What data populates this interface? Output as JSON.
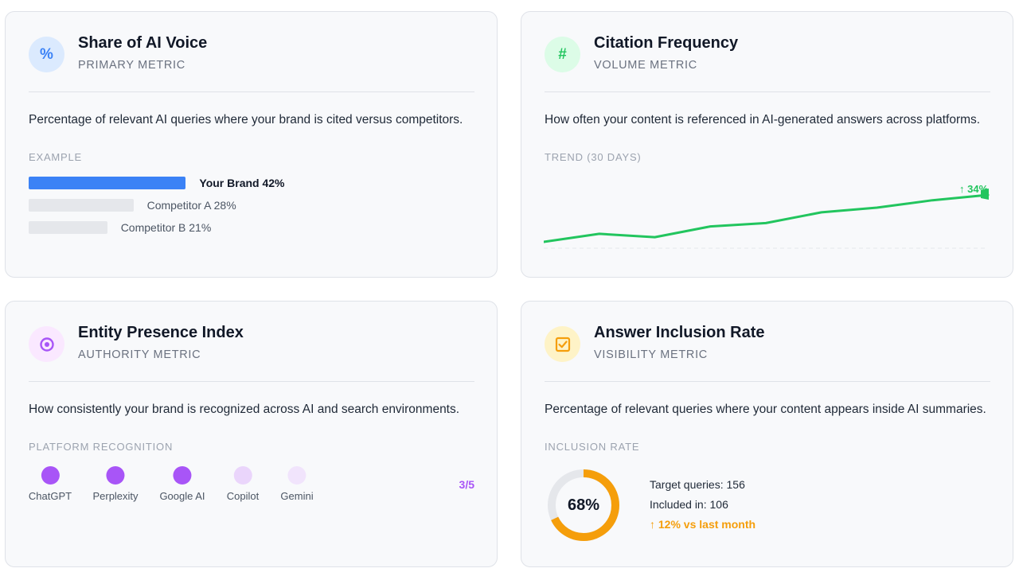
{
  "cards": [
    {
      "title": "Share of AI Voice",
      "subtitle": "PRIMARY METRIC",
      "icon": "percent-icon",
      "icon_glyph": "%",
      "description": "Percentage of relevant AI queries where your brand is cited versus competitors.",
      "section_label": "EXAMPLE",
      "bars": [
        {
          "label": "Your Brand 42%",
          "value": 42,
          "color": "#3b82f6",
          "highlight": true
        },
        {
          "label": "Competitor A 28%",
          "value": 28,
          "color": "#e5e7eb",
          "highlight": false
        },
        {
          "label": "Competitor B 21%",
          "value": 21,
          "color": "#e5e7eb",
          "highlight": false
        }
      ]
    },
    {
      "title": "Citation Frequency",
      "subtitle": "VOLUME METRIC",
      "icon": "hash-icon",
      "icon_glyph": "#",
      "description": "How often your content is referenced in AI-generated answers across platforms.",
      "section_label": "TREND (30 DAYS)",
      "trend_badge": "↑ 34%"
    },
    {
      "title": "Entity Presence Index",
      "subtitle": "AUTHORITY METRIC",
      "icon": "target-icon",
      "description": "How consistently your brand is recognized across AI and search environments.",
      "section_label": "PLATFORM RECOGNITION",
      "platforms": [
        {
          "name": "ChatGPT",
          "recognized": true
        },
        {
          "name": "Perplexity",
          "recognized": true
        },
        {
          "name": "Google AI",
          "recognized": true
        },
        {
          "name": "Copilot",
          "recognized": false
        },
        {
          "name": "Gemini",
          "recognized": false
        }
      ],
      "score": "3/5"
    },
    {
      "title": "Answer Inclusion Rate",
      "subtitle": "VISIBILITY METRIC",
      "icon": "checkbox-icon",
      "description": "Percentage of relevant queries where your content appears inside AI summaries.",
      "section_label": "INCLUSION RATE",
      "rate_label": "68%",
      "rate_value": 0.68,
      "stats": {
        "target": "Target queries: 156",
        "included": "Included in: 106",
        "delta": "↑ 12% vs last month"
      }
    }
  ],
  "colors": {
    "blue": "#3b82f6",
    "green": "#22c55e",
    "purple": "#a855f7",
    "amber": "#f59e0b"
  },
  "chart_data": {
    "type": "line",
    "values": [
      0,
      12,
      7,
      23,
      28,
      44,
      51,
      62,
      70
    ],
    "ylim": [
      0,
      70
    ]
  }
}
